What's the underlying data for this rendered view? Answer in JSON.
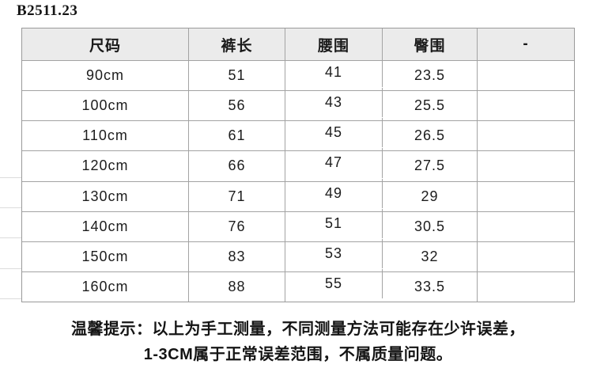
{
  "title": "B2511.23",
  "table": {
    "columns": [
      "尺码",
      "裤长",
      "腰围",
      "臀围",
      "-"
    ],
    "rows": [
      [
        "90cm",
        "51",
        "41",
        "23.5",
        ""
      ],
      [
        "100cm",
        "56",
        "43",
        "25.5",
        ""
      ],
      [
        "110cm",
        "61",
        "45",
        "26.5",
        ""
      ],
      [
        "120cm",
        "66",
        "47",
        "27.5",
        ""
      ],
      [
        "130cm",
        "71",
        "49",
        "29",
        ""
      ],
      [
        "140cm",
        "76",
        "51",
        "30.5",
        ""
      ],
      [
        "150cm",
        "83",
        "53",
        "32",
        ""
      ],
      [
        "160cm",
        "88",
        "55",
        "33.5",
        ""
      ]
    ]
  },
  "note": {
    "line1": "温馨提示：以上为手工测量，不同测量方法可能存在少许误差，",
    "line2": "1-3CM属于正常误差范围，不属质量问题。"
  },
  "colors": {
    "header_bg": "#ebebeb",
    "border": "#a3a3a3",
    "text": "#1c1c1c"
  }
}
